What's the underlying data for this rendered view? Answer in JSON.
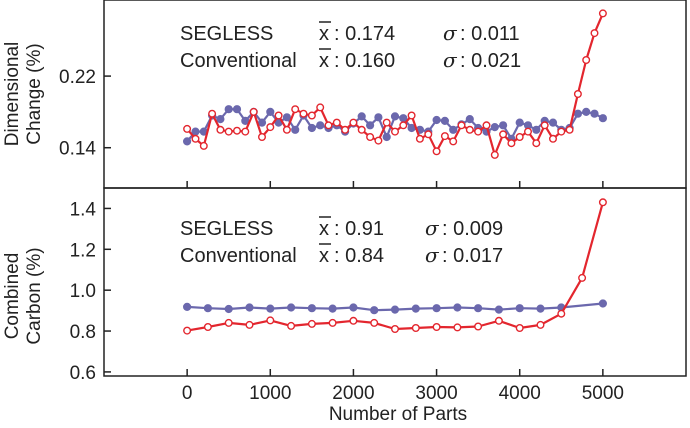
{
  "chart_data": [
    {
      "type": "line",
      "panel": "top",
      "ylabel": [
        "Dimensional",
        "Change (%)"
      ],
      "yticks": [
        0.14,
        0.22
      ],
      "ytick_labels": [
        "0.14",
        "0.22"
      ],
      "ylim": [
        0.095,
        0.305
      ],
      "stats": [
        {
          "name": "SEGLESS",
          "mean_label": "x",
          "mean": ": 0.174",
          "sigma_label": "σ",
          "sigma": ": 0.011"
        },
        {
          "name": "Conventional",
          "mean_label": "x",
          "mean": ": 0.160",
          "sigma_label": "σ",
          "sigma": ": 0.021"
        }
      ],
      "series": [
        {
          "name": "SEGLESS",
          "color": "#6b68ad",
          "marker": "filled-circle",
          "x": [
            0,
            100,
            200,
            300,
            400,
            500,
            600,
            700,
            800,
            900,
            1000,
            1100,
            1200,
            1300,
            1400,
            1500,
            1600,
            1700,
            1800,
            1900,
            2000,
            2100,
            2200,
            2300,
            2400,
            2500,
            2600,
            2700,
            2800,
            2900,
            3000,
            3100,
            3200,
            3300,
            3400,
            3500,
            3600,
            3700,
            3800,
            3900,
            4000,
            4100,
            4200,
            4300,
            4400,
            4500,
            4600,
            4700,
            4800,
            4900,
            5000
          ],
          "y": [
            0.147,
            0.158,
            0.158,
            0.176,
            0.172,
            0.183,
            0.183,
            0.17,
            0.18,
            0.168,
            0.18,
            0.168,
            0.174,
            0.16,
            0.176,
            0.162,
            0.165,
            0.162,
            0.165,
            0.158,
            0.167,
            0.175,
            0.165,
            0.174,
            0.152,
            0.175,
            0.173,
            0.162,
            0.16,
            0.158,
            0.171,
            0.17,
            0.16,
            0.166,
            0.172,
            0.162,
            0.158,
            0.163,
            0.165,
            0.15,
            0.168,
            0.165,
            0.16,
            0.17,
            0.168,
            0.16,
            0.162,
            0.178,
            0.18,
            0.178,
            0.173
          ]
        },
        {
          "name": "Conventional",
          "color": "#e3262e",
          "marker": "open-circle",
          "x": [
            0,
            100,
            200,
            300,
            400,
            500,
            600,
            700,
            800,
            900,
            1000,
            1100,
            1200,
            1300,
            1400,
            1500,
            1600,
            1700,
            1800,
            1900,
            2000,
            2100,
            2200,
            2300,
            2400,
            2500,
            2600,
            2700,
            2800,
            2900,
            3000,
            3100,
            3200,
            3300,
            3400,
            3500,
            3600,
            3700,
            3800,
            3900,
            4000,
            4100,
            4200,
            4300,
            4400,
            4500,
            4600,
            4700,
            4800,
            4900,
            5000
          ],
          "y": [
            0.161,
            0.15,
            0.142,
            0.178,
            0.16,
            0.158,
            0.159,
            0.158,
            0.18,
            0.152,
            0.163,
            0.176,
            0.16,
            0.183,
            0.178,
            0.176,
            0.185,
            0.165,
            0.168,
            0.16,
            0.168,
            0.16,
            0.152,
            0.148,
            0.168,
            0.158,
            0.165,
            0.176,
            0.15,
            0.155,
            0.136,
            0.153,
            0.147,
            0.165,
            0.16,
            0.158,
            0.165,
            0.132,
            0.155,
            0.145,
            0.152,
            0.158,
            0.145,
            0.165,
            0.15,
            0.158,
            0.16,
            0.2,
            0.238,
            0.268,
            0.29
          ]
        }
      ]
    },
    {
      "type": "line",
      "panel": "bottom",
      "ylabel": [
        "Combined",
        "Carbon (%)"
      ],
      "yticks": [
        0.6,
        0.8,
        1.0,
        1.2,
        1.4
      ],
      "ytick_labels": [
        "0.6",
        "0.8",
        "1.0",
        "1.2",
        "1.4"
      ],
      "ylim": [
        0.58,
        1.5
      ],
      "xlabel": "Number of Parts",
      "xticks": [
        0,
        1000,
        2000,
        3000,
        4000,
        5000
      ],
      "xtick_labels": [
        "0",
        "1000",
        "2000",
        "3000",
        "4000",
        "5000"
      ],
      "xlim": [
        -1000,
        6000
      ],
      "stats": [
        {
          "name": "SEGLESS",
          "mean_label": "x",
          "mean": ": 0.91",
          "sigma_label": "σ",
          "sigma": ": 0.009"
        },
        {
          "name": "Conventional",
          "mean_label": "x",
          "mean": ": 0.84",
          "sigma_label": "σ",
          "sigma": ": 0.017"
        }
      ],
      "series": [
        {
          "name": "SEGLESS",
          "color": "#6b68ad",
          "marker": "filled-circle",
          "x": [
            0,
            250,
            500,
            750,
            1000,
            1250,
            1500,
            1750,
            2000,
            2250,
            2500,
            2750,
            3000,
            3250,
            3500,
            3750,
            4000,
            4250,
            4500,
            5000
          ],
          "y": [
            0.918,
            0.912,
            0.908,
            0.915,
            0.91,
            0.915,
            0.912,
            0.91,
            0.915,
            0.902,
            0.905,
            0.91,
            0.912,
            0.915,
            0.912,
            0.905,
            0.912,
            0.91,
            0.915,
            0.935
          ]
        },
        {
          "name": "Conventional",
          "color": "#e3262e",
          "marker": "open-circle",
          "x": [
            0,
            250,
            500,
            750,
            1000,
            1250,
            1500,
            1750,
            2000,
            2250,
            2500,
            2750,
            3000,
            3250,
            3500,
            3750,
            4000,
            4250,
            4500,
            4750,
            5000
          ],
          "y": [
            0.802,
            0.82,
            0.84,
            0.83,
            0.852,
            0.825,
            0.835,
            0.84,
            0.85,
            0.84,
            0.81,
            0.815,
            0.82,
            0.818,
            0.822,
            0.85,
            0.815,
            0.83,
            0.885,
            1.06,
            1.43
          ]
        }
      ]
    }
  ]
}
